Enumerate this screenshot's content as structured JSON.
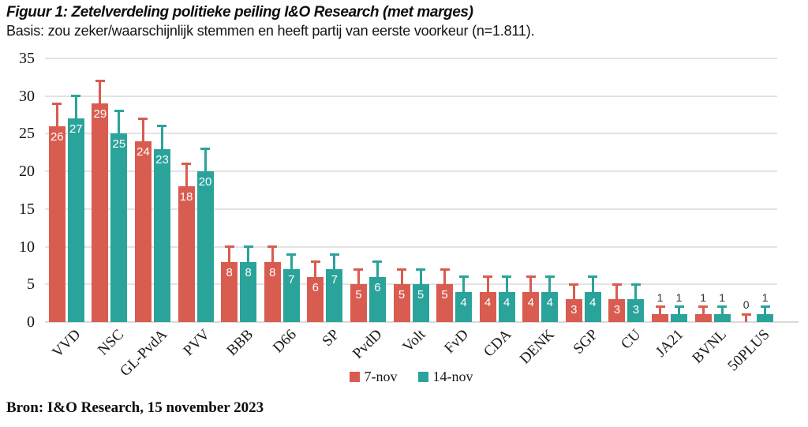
{
  "header": {
    "title": "Figuur 1: Zetelverdeling politieke peiling I&O Research (met marges)",
    "subtitle": "Basis: zou zeker/waarschijnlijk stemmen en heeft partij van eerste voorkeur (n=1.811)."
  },
  "source": "Bron: I&O Research, 15 november 2023",
  "colors": {
    "series_7nov": "#d95c50",
    "series_14nov": "#2aa39b",
    "gridline": "#e3e3e3",
    "axis_line": "#dadada",
    "value_label_inside": "#ffffff",
    "value_label_outside": "#333333"
  },
  "chart_data": {
    "type": "bar",
    "title": "Figuur 1: Zetelverdeling politieke peiling I&O Research (met marges)",
    "subtitle": "Basis: zou zeker/waarschijnlijk stemmen en heeft partij van eerste voorkeur (n=1.811).",
    "categories": [
      "VVD",
      "NSC",
      "GL-PvdA",
      "PVV",
      "BBB",
      "D66",
      "SP",
      "PvdD",
      "Volt",
      "FvD",
      "CDA",
      "DENK",
      "SGP",
      "CU",
      "JA21",
      "BVNL",
      "50PLUS"
    ],
    "series": [
      {
        "name": "7-nov",
        "color": "#d95c50",
        "values": [
          26,
          29,
          24,
          18,
          8,
          8,
          6,
          5,
          5,
          5,
          4,
          4,
          3,
          3,
          1,
          1,
          0
        ],
        "upper_margin": [
          29,
          32,
          27,
          21,
          10,
          10,
          8,
          7,
          7,
          7,
          6,
          6,
          5,
          5,
          2,
          2,
          1
        ]
      },
      {
        "name": "14-nov",
        "color": "#2aa39b",
        "values": [
          27,
          25,
          23,
          20,
          8,
          7,
          7,
          6,
          5,
          4,
          4,
          4,
          4,
          3,
          1,
          1,
          1
        ],
        "upper_margin": [
          30,
          28,
          26,
          23,
          10,
          9,
          9,
          8,
          7,
          6,
          6,
          6,
          6,
          5,
          2,
          2,
          2
        ]
      }
    ],
    "xlabel": "",
    "ylabel": "",
    "ylim": [
      0,
      35
    ],
    "ytick_step": 5,
    "grid": true,
    "error_bars": "upper margin whiskers above each bar",
    "legend_position": "bottom center"
  }
}
